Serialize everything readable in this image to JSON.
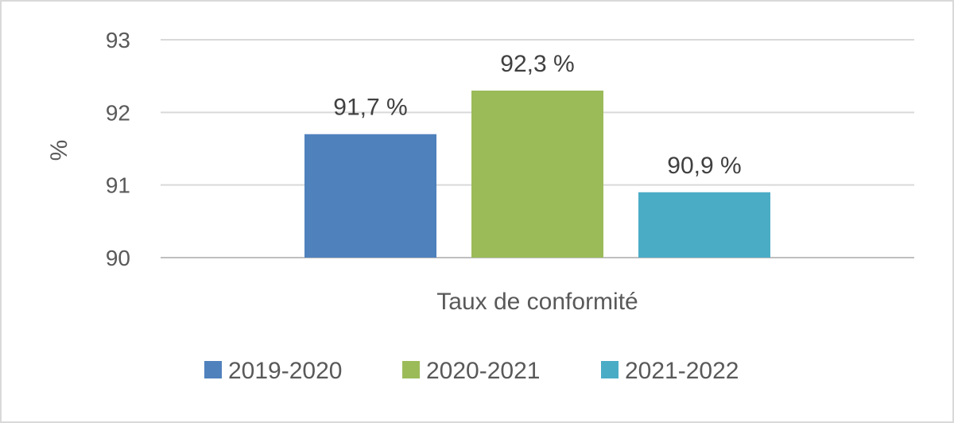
{
  "chart_data": {
    "type": "bar",
    "categories": [
      "Taux de conformité"
    ],
    "series": [
      {
        "name": "2019-2020",
        "values": [
          91.7
        ],
        "color": "#4f81bd",
        "data_label": "91,7 %"
      },
      {
        "name": "2020-2021",
        "values": [
          92.3
        ],
        "color": "#9bbb59",
        "data_label": "92,3 %"
      },
      {
        "name": "2021-2022",
        "values": [
          90.9
        ],
        "color": "#4bacc6",
        "data_label": "90,9 %"
      }
    ],
    "title": "",
    "xlabel": "",
    "ylabel": "%",
    "ylim": [
      90,
      93
    ],
    "yticks": [
      90,
      91,
      92,
      93
    ],
    "ytick_labels": [
      "90",
      "91",
      "92",
      "93"
    ],
    "grid": true,
    "legend_position": "bottom"
  }
}
